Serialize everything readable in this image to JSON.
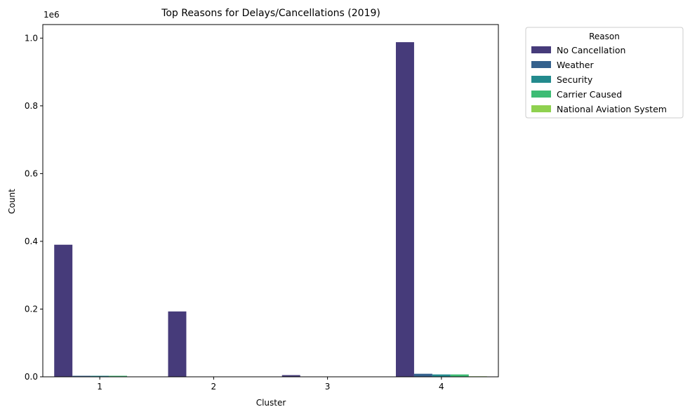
{
  "chart_data": {
    "type": "bar",
    "title": "Top Reasons for Delays/Cancellations (2019)",
    "xlabel": "Cluster",
    "ylabel": "Count",
    "offset_label": "1e6",
    "categories": [
      "1",
      "2",
      "3",
      "4"
    ],
    "ylim": [
      0,
      1040000
    ],
    "yticks": [
      0,
      200000,
      400000,
      600000,
      800000,
      1000000
    ],
    "ytick_labels": [
      "0.0",
      "0.2",
      "0.4",
      "0.6",
      "0.8",
      "1.0"
    ],
    "legend_title": "Reason",
    "legend_position": "outside-top-right",
    "grid": false,
    "series": [
      {
        "name": "No Cancellation",
        "color": "#463b7a",
        "values": [
          390000,
          193000,
          5000,
          988000
        ]
      },
      {
        "name": "Weather",
        "color": "#34618d",
        "values": [
          3000,
          1000,
          100,
          9000
        ]
      },
      {
        "name": "Security",
        "color": "#238a8d",
        "values": [
          3000,
          1000,
          100,
          7000
        ]
      },
      {
        "name": "Carrier Caused",
        "color": "#3dbc74",
        "values": [
          3000,
          1000,
          100,
          7000
        ]
      },
      {
        "name": "National Aviation System",
        "color": "#8fd14f",
        "values": [
          500,
          200,
          0,
          1500
        ]
      }
    ]
  }
}
